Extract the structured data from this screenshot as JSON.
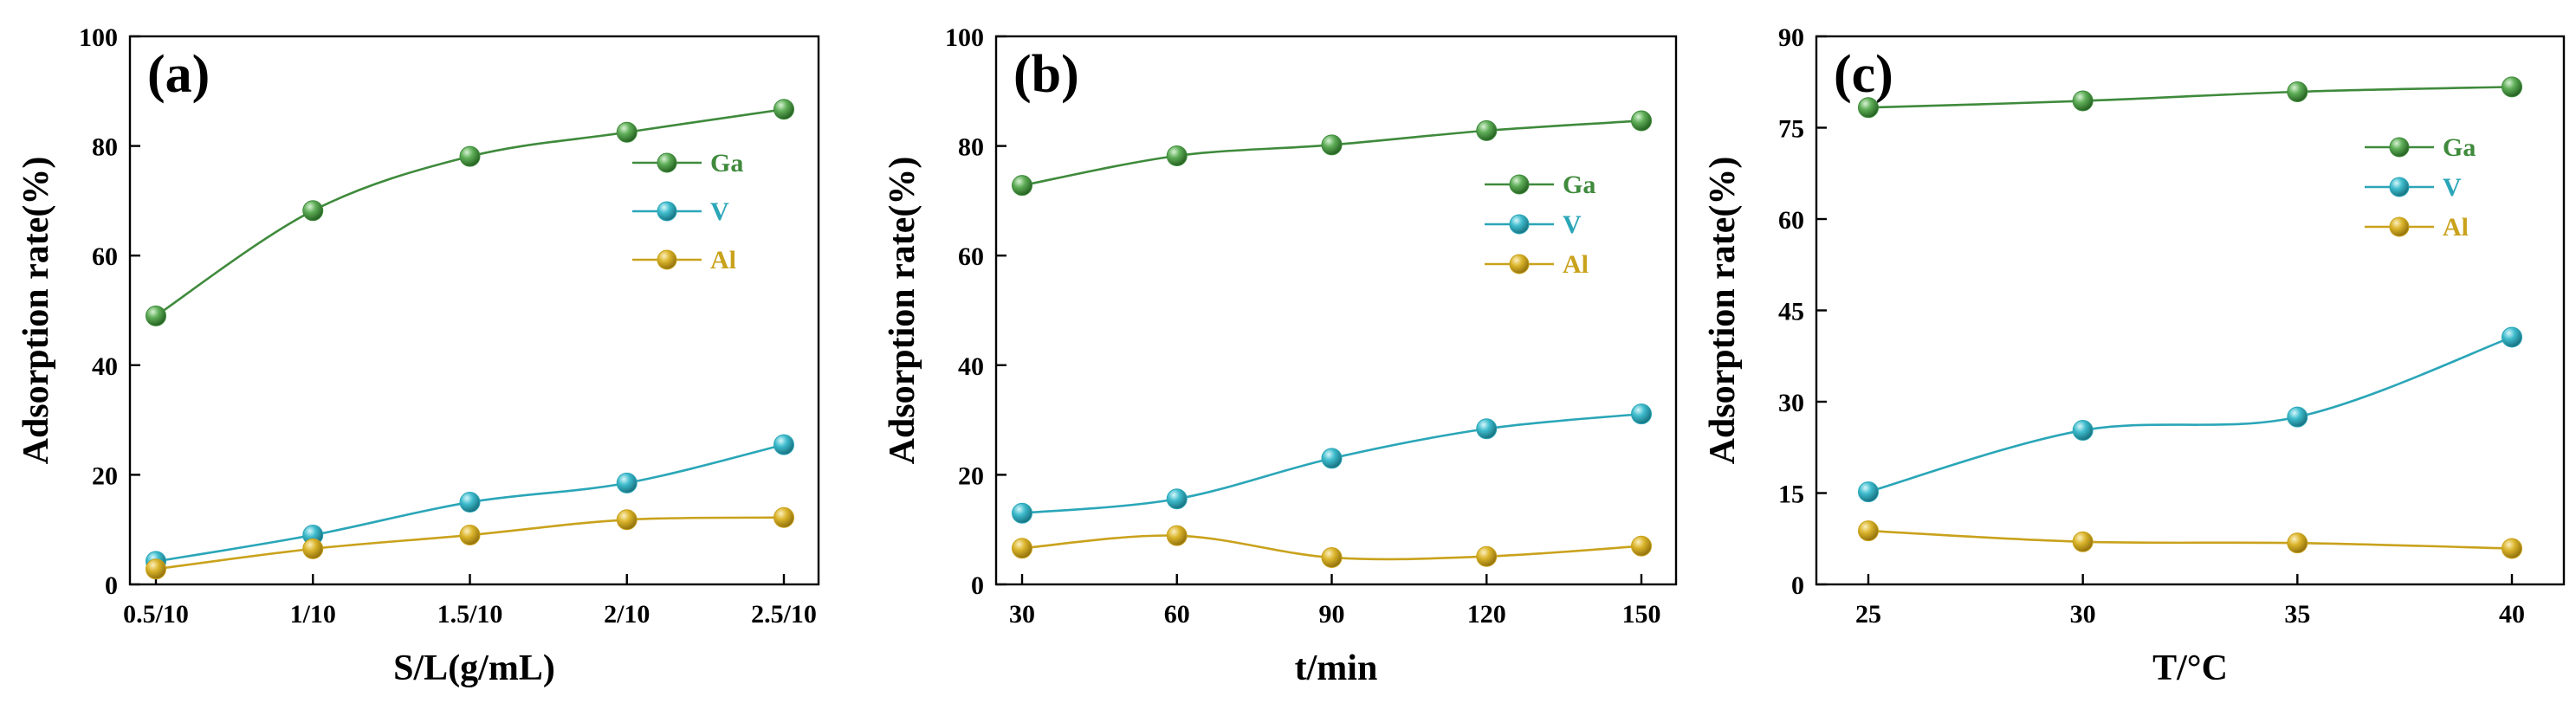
{
  "chart_data": [
    {
      "type": "line",
      "panel_label": "(a)",
      "xlabel": "S/L(g/mL)",
      "ylabel": "Adsorption rate(%)",
      "categories": [
        "0.5/10",
        "1/10",
        "1.5/10",
        "2/10",
        "2.5/10"
      ],
      "ylim": [
        0,
        100
      ],
      "yticks": [
        0,
        20,
        40,
        60,
        80,
        100
      ],
      "legend_position": "top-right",
      "series": [
        {
          "name": "Ga",
          "color": "#3f8a3c",
          "values": [
            49.0,
            68.2,
            78.1,
            82.5,
            86.7
          ]
        },
        {
          "name": "V",
          "color": "#2aa6b8",
          "values": [
            4.2,
            9.0,
            15.0,
            18.5,
            25.5
          ]
        },
        {
          "name": "Al",
          "color": "#c9a21c",
          "values": [
            2.8,
            6.5,
            9.0,
            11.8,
            12.2
          ]
        }
      ]
    },
    {
      "type": "line",
      "panel_label": "(b)",
      "xlabel": "t/min",
      "ylabel": "Adsorption rate(%)",
      "categories": [
        "30",
        "60",
        "90",
        "120",
        "150"
      ],
      "ylim": [
        0,
        100
      ],
      "yticks": [
        0,
        20,
        40,
        60,
        80,
        100
      ],
      "legend_position": "right",
      "series": [
        {
          "name": "Ga",
          "color": "#3f8a3c",
          "values": [
            72.8,
            78.2,
            80.2,
            82.8,
            84.6
          ]
        },
        {
          "name": "V",
          "color": "#2aa6b8",
          "values": [
            13.0,
            15.6,
            23.0,
            28.4,
            31.1
          ]
        },
        {
          "name": "Al",
          "color": "#c9a21c",
          "values": [
            6.6,
            8.9,
            4.9,
            5.1,
            7.0
          ]
        }
      ]
    },
    {
      "type": "line",
      "panel_label": "(c)",
      "xlabel": "T/°C",
      "ylabel": "Adsorption rate(%)",
      "categories": [
        "25",
        "30",
        "35",
        "40"
      ],
      "ylim": [
        0,
        90
      ],
      "yticks": [
        0,
        15,
        30,
        45,
        60,
        75,
        90
      ],
      "legend_position": "top-right",
      "series": [
        {
          "name": "Ga",
          "color": "#3f8a3c",
          "values": [
            78.3,
            79.4,
            80.9,
            81.7
          ]
        },
        {
          "name": "V",
          "color": "#2aa6b8",
          "values": [
            15.2,
            25.3,
            27.5,
            40.6
          ]
        },
        {
          "name": "Al",
          "color": "#c9a21c",
          "values": [
            8.8,
            7.0,
            6.8,
            5.9
          ]
        }
      ]
    }
  ]
}
